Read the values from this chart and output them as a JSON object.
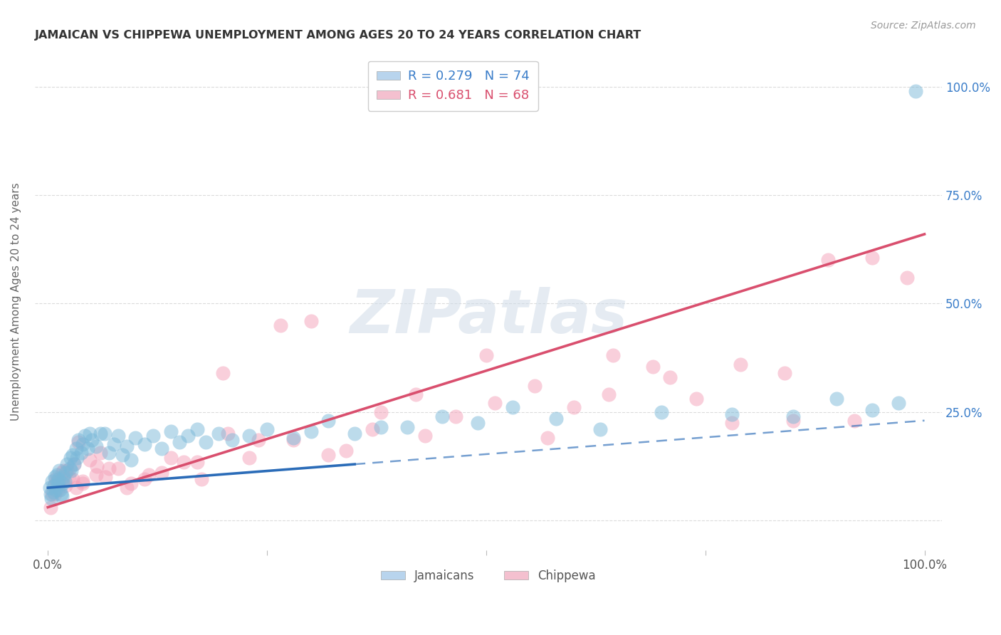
{
  "title": "JAMAICAN VS CHIPPEWA UNEMPLOYMENT AMONG AGES 20 TO 24 YEARS CORRELATION CHART",
  "source": "Source: ZipAtlas.com",
  "ylabel": "Unemployment Among Ages 20 to 24 years",
  "legend_label1": "R = 0.279   N = 74",
  "legend_label2": "R = 0.681   N = 68",
  "legend_bottom1": "Jamaicans",
  "legend_bottom2": "Chippewa",
  "blue_scatter_color": "#7ab8d9",
  "pink_scatter_color": "#f4a0b8",
  "blue_line_color": "#2b6cb8",
  "pink_line_color": "#d94f6e",
  "blue_legend_fill": "#b8d4ed",
  "pink_legend_fill": "#f4c0cf",
  "background_color": "#ffffff",
  "grid_color": "#cccccc",
  "title_color": "#333333",
  "right_axis_color": "#3a7dc9",
  "watermark_color": "#d0dce8",
  "watermark_alpha": 0.55,
  "solid_cutoff": 0.35,
  "jam_line_intercept": 0.075,
  "jam_line_slope": 0.155,
  "chip_line_intercept": 0.03,
  "chip_line_slope": 0.63,
  "jam_points_x": [
    0.002,
    0.003,
    0.004,
    0.005,
    0.006,
    0.007,
    0.008,
    0.009,
    0.01,
    0.011,
    0.012,
    0.013,
    0.014,
    0.015,
    0.016,
    0.017,
    0.018,
    0.019,
    0.02,
    0.022,
    0.025,
    0.026,
    0.027,
    0.028,
    0.03,
    0.032,
    0.033,
    0.035,
    0.038,
    0.04,
    0.042,
    0.045,
    0.048,
    0.05,
    0.055,
    0.06,
    0.065,
    0.07,
    0.075,
    0.08,
    0.085,
    0.09,
    0.095,
    0.1,
    0.11,
    0.12,
    0.13,
    0.14,
    0.15,
    0.16,
    0.17,
    0.18,
    0.195,
    0.21,
    0.23,
    0.25,
    0.28,
    0.3,
    0.32,
    0.35,
    0.38,
    0.41,
    0.45,
    0.49,
    0.53,
    0.58,
    0.63,
    0.7,
    0.78,
    0.85,
    0.9,
    0.94,
    0.97,
    0.99
  ],
  "jam_points_y": [
    0.075,
    0.06,
    0.05,
    0.09,
    0.065,
    0.08,
    0.1,
    0.07,
    0.105,
    0.085,
    0.095,
    0.115,
    0.07,
    0.06,
    0.055,
    0.085,
    0.1,
    0.09,
    0.11,
    0.13,
    0.12,
    0.145,
    0.115,
    0.15,
    0.13,
    0.165,
    0.145,
    0.185,
    0.155,
    0.175,
    0.195,
    0.165,
    0.2,
    0.185,
    0.17,
    0.2,
    0.2,
    0.155,
    0.175,
    0.195,
    0.15,
    0.17,
    0.14,
    0.19,
    0.175,
    0.195,
    0.165,
    0.205,
    0.18,
    0.195,
    0.21,
    0.18,
    0.2,
    0.185,
    0.195,
    0.21,
    0.19,
    0.205,
    0.23,
    0.2,
    0.215,
    0.215,
    0.24,
    0.225,
    0.26,
    0.235,
    0.21,
    0.25,
    0.245,
    0.24,
    0.28,
    0.255,
    0.27,
    0.99
  ],
  "chip_points_x": [
    0.003,
    0.005,
    0.007,
    0.009,
    0.011,
    0.013,
    0.016,
    0.02,
    0.024,
    0.028,
    0.032,
    0.04,
    0.048,
    0.056,
    0.066,
    0.08,
    0.095,
    0.11,
    0.13,
    0.155,
    0.175,
    0.2,
    0.23,
    0.265,
    0.3,
    0.34,
    0.38,
    0.42,
    0.465,
    0.51,
    0.555,
    0.6,
    0.645,
    0.69,
    0.74,
    0.79,
    0.84,
    0.89,
    0.94,
    0.98,
    0.008,
    0.015,
    0.022,
    0.03,
    0.04,
    0.055,
    0.07,
    0.09,
    0.115,
    0.14,
    0.17,
    0.205,
    0.24,
    0.28,
    0.32,
    0.37,
    0.43,
    0.5,
    0.57,
    0.64,
    0.71,
    0.78,
    0.85,
    0.92,
    0.01,
    0.018,
    0.035,
    0.06
  ],
  "chip_points_y": [
    0.03,
    0.06,
    0.08,
    0.095,
    0.07,
    0.09,
    0.11,
    0.08,
    0.1,
    0.095,
    0.075,
    0.09,
    0.14,
    0.125,
    0.1,
    0.12,
    0.085,
    0.095,
    0.11,
    0.135,
    0.095,
    0.34,
    0.145,
    0.45,
    0.46,
    0.16,
    0.25,
    0.29,
    0.24,
    0.27,
    0.31,
    0.26,
    0.38,
    0.355,
    0.28,
    0.36,
    0.34,
    0.6,
    0.605,
    0.56,
    0.06,
    0.095,
    0.115,
    0.13,
    0.085,
    0.105,
    0.12,
    0.075,
    0.105,
    0.145,
    0.135,
    0.2,
    0.185,
    0.185,
    0.15,
    0.21,
    0.195,
    0.38,
    0.19,
    0.29,
    0.33,
    0.225,
    0.23,
    0.23,
    0.09,
    0.115,
    0.18,
    0.155
  ]
}
